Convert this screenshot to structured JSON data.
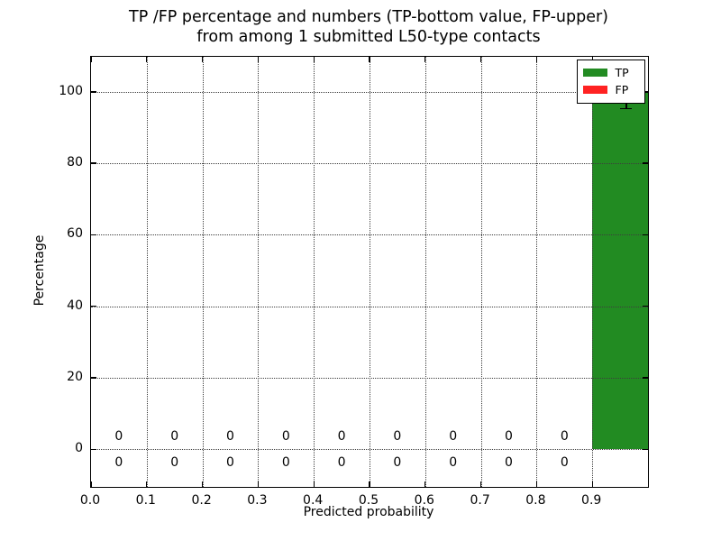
{
  "chart_data": {
    "type": "bar",
    "title_lines": [
      "TP /FP percentage and numbers (TP-bottom value, FP-upper)",
      "from among 1 submitted L50-type contacts"
    ],
    "xlabel": "Predicted probability",
    "ylabel": "Percentage",
    "xlim": [
      0.0,
      1.0
    ],
    "ylim": [
      -10.5,
      109.8
    ],
    "xticks": [
      0.0,
      0.1,
      0.2,
      0.3,
      0.4,
      0.5,
      0.6,
      0.7,
      0.8,
      0.9
    ],
    "yticks": [
      0,
      20,
      40,
      60,
      80,
      100
    ],
    "grid": {
      "style": "dotted",
      "color": "#3d3d3d"
    },
    "bin_width": 0.1,
    "bin_starts": [
      0.0,
      0.1,
      0.2,
      0.3,
      0.4,
      0.5,
      0.6,
      0.7,
      0.8,
      0.9
    ],
    "series": [
      {
        "name": "TP",
        "color": "#228b22",
        "values": [
          0,
          0,
          0,
          0,
          0,
          0,
          0,
          0,
          0,
          100
        ]
      },
      {
        "name": "FP",
        "color": "#ff2222",
        "values": [
          0,
          0,
          0,
          0,
          0,
          0,
          0,
          0,
          0,
          0
        ]
      }
    ],
    "error_bar": {
      "x": 0.961,
      "y": 100,
      "yerr": 4.7,
      "color": "#000000"
    },
    "annotations": {
      "bin_centers": [
        0.05,
        0.15,
        0.25,
        0.35,
        0.45,
        0.55,
        0.65,
        0.75,
        0.85
      ],
      "fp_upper_row": [
        "0",
        "0",
        "0",
        "0",
        "0",
        "0",
        "0",
        "0",
        "0"
      ],
      "tp_lower_row": [
        "0",
        "0",
        "0",
        "0",
        "0",
        "0",
        "0",
        "0",
        "0"
      ]
    },
    "legend": {
      "position": "upper right",
      "entries": [
        {
          "label": "TP",
          "color": "#228b22"
        },
        {
          "label": "FP",
          "color": "#ff2222"
        }
      ]
    },
    "background_color": "#ffffff",
    "axes_color": "#000000"
  }
}
